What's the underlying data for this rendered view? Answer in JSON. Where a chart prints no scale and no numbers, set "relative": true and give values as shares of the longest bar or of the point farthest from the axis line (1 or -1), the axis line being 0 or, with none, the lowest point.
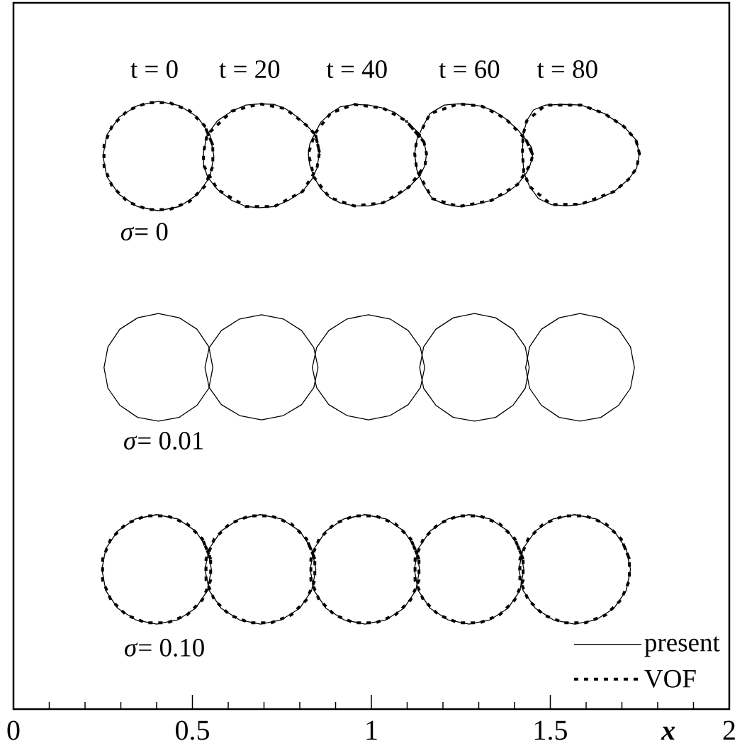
{
  "chart_data": {
    "type": "line",
    "relative": true,
    "xlabel": "x",
    "xlim": [
      0,
      2
    ],
    "xticks": [
      0,
      {
        "value": 0.1,
        "label": null
      },
      {
        "value": 0.2,
        "label": null
      },
      {
        "value": 0.3,
        "label": null
      },
      {
        "value": 0.4,
        "label": null
      },
      0.5,
      {
        "value": 0.6,
        "label": null
      },
      {
        "value": 0.7,
        "label": null
      },
      {
        "value": 0.8,
        "label": null
      },
      {
        "value": 0.9,
        "label": null
      },
      1,
      {
        "value": 1.1,
        "label": null
      },
      {
        "value": 1.2,
        "label": null
      },
      {
        "value": 1.3,
        "label": null
      },
      {
        "value": 1.4,
        "label": null
      },
      1.5,
      {
        "value": 1.6,
        "label": null
      },
      {
        "value": 1.7,
        "label": null
      },
      {
        "value": 1.8,
        "label": null
      },
      {
        "value": 1.9,
        "label": null
      },
      2
    ],
    "legend": "bottom right",
    "annotations": [
      "t = 0",
      "t = 20",
      "t = 40",
      "t = 60",
      "t = 80",
      "*σ*= 0",
      "*σ*= 0.01",
      "*σ*= 0.10"
    ],
    "series": [
      {
        "name": "present",
        "color": "#000000",
        "line_style": "solid",
        "x": [
          0.56,
          0.549,
          0.515,
          0.464,
          0.405,
          0.346,
          0.295,
          0.261,
          0.25,
          0.261,
          0.295,
          0.346,
          0.405,
          0.464,
          0.515,
          0.549,
          0.56,
          0.549
        ],
        "values": [
          0.91,
          0.945,
          0.974,
          0.993,
          1,
          0.993,
          0.974,
          0.945,
          0.91,
          0.876,
          0.847,
          0.827,
          0.82,
          0.827,
          0.847,
          0.876,
          0.91,
          0.945
        ]
      },
      {
        "color": "#000000",
        "line_style": "solid",
        "x": [
          0.855,
          0.844,
          0.82,
          0.794,
          0.76,
          0.729,
          0.689,
          0.65,
          0.61,
          0.57,
          0.541,
          0.531,
          0.531,
          0.543,
          0.57,
          0.61,
          0.65,
          0.689,
          0.729,
          0.768,
          0.808,
          0.834,
          0.848,
          0.855,
          0.844
        ],
        "values": [
          0.916,
          0.945,
          0.96,
          0.974,
          0.988,
          0.995,
          0.996,
          0.994,
          0.984,
          0.968,
          0.945,
          0.916,
          0.895,
          0.875,
          0.855,
          0.837,
          0.827,
          0.825,
          0.827,
          0.837,
          0.852,
          0.872,
          0.89,
          0.916,
          0.945
        ]
      },
      {
        "color": "#000000",
        "line_style": "solid",
        "x": [
          1.154,
          1.147,
          1.131,
          1.097,
          1.065,
          1.032,
          0.992,
          0.952,
          0.913,
          0.887,
          0.859,
          0.842,
          0.828,
          0.824,
          0.828,
          0.84,
          0.859,
          0.883,
          0.913,
          0.952,
          0.992,
          1.032,
          1.065,
          1.105,
          1.135,
          1.15,
          1.154,
          1.147
        ],
        "values": [
          0.914,
          0.933,
          0.949,
          0.968,
          0.982,
          0.989,
          0.994,
          0.995,
          0.991,
          0.981,
          0.966,
          0.947,
          0.93,
          0.914,
          0.895,
          0.875,
          0.856,
          0.842,
          0.833,
          0.828,
          0.828,
          0.833,
          0.842,
          0.859,
          0.877,
          0.895,
          0.914,
          0.933
        ]
      },
      {
        "color": "#000000",
        "line_style": "solid",
        "x": [
          1.451,
          1.448,
          1.432,
          1.408,
          1.374,
          1.343,
          1.309,
          1.275,
          1.244,
          1.204,
          1.164,
          1.145,
          1.127,
          1.121,
          1.127,
          1.145,
          1.17,
          1.204,
          1.244,
          1.289,
          1.335,
          1.374,
          1.408,
          1.434,
          1.444,
          1.451,
          1.448
        ],
        "values": [
          0.912,
          0.924,
          0.937,
          0.954,
          0.972,
          0.984,
          0.992,
          0.995,
          0.996,
          0.994,
          0.98,
          0.96,
          0.937,
          0.914,
          0.887,
          0.863,
          0.84,
          0.831,
          0.827,
          0.83,
          0.837,
          0.848,
          0.863,
          0.883,
          0.896,
          0.912,
          0.924
        ]
      },
      {
        "color": "#000000",
        "line_style": "solid",
        "x": [
          1.749,
          1.739,
          1.705,
          1.651,
          1.586,
          1.537,
          1.487,
          1.453,
          1.434,
          1.424,
          1.422,
          1.426,
          1.442,
          1.467,
          1.503,
          1.547,
          1.586,
          1.626,
          1.679,
          1.719,
          1.741,
          1.749,
          1.739
        ],
        "values": [
          0.914,
          0.937,
          0.959,
          0.98,
          0.994,
          0.995,
          0.994,
          0.986,
          0.968,
          0.945,
          0.914,
          0.883,
          0.86,
          0.84,
          0.83,
          0.828,
          0.831,
          0.837,
          0.852,
          0.872,
          0.89,
          0.914,
          0.937
        ]
      },
      {
        "color": "#000000",
        "line_style": "solid",
        "x": [
          0.557,
          0.546,
          0.513,
          0.463,
          0.405,
          0.347,
          0.297,
          0.264,
          0.253,
          0.264,
          0.297,
          0.347,
          0.405,
          0.463,
          0.513,
          0.546,
          0.557,
          0.546
        ],
        "values": [
          0.562,
          0.596,
          0.625,
          0.644,
          0.651,
          0.644,
          0.625,
          0.596,
          0.562,
          0.528,
          0.5,
          0.48,
          0.474,
          0.48,
          0.5,
          0.528,
          0.562,
          0.596
        ]
      },
      {
        "color": "#000000",
        "line_style": "solid",
        "x": [
          0.851,
          0.839,
          0.805,
          0.754,
          0.693,
          0.632,
          0.581,
          0.547,
          0.535,
          0.547,
          0.581,
          0.632,
          0.693,
          0.754,
          0.805,
          0.839,
          0.851,
          0.839
        ],
        "values": [
          0.562,
          0.595,
          0.623,
          0.642,
          0.649,
          0.642,
          0.623,
          0.595,
          0.562,
          0.529,
          0.501,
          0.483,
          0.476,
          0.483,
          0.501,
          0.529,
          0.562,
          0.595
        ]
      },
      {
        "color": "#000000",
        "line_style": "solid",
        "x": [
          1.149,
          1.137,
          1.103,
          1.052,
          0.992,
          0.932,
          0.881,
          0.847,
          0.835,
          0.847,
          0.881,
          0.932,
          0.992,
          1.052,
          1.103,
          1.137,
          1.149,
          1.137
        ],
        "values": [
          0.562,
          0.595,
          0.623,
          0.642,
          0.649,
          0.642,
          0.623,
          0.595,
          0.562,
          0.529,
          0.501,
          0.483,
          0.476,
          0.483,
          0.501,
          0.529,
          0.562,
          0.595
        ]
      },
      {
        "color": "#000000",
        "line_style": "solid",
        "x": [
          1.441,
          1.43,
          1.396,
          1.347,
          1.288,
          1.229,
          1.18,
          1.146,
          1.135,
          1.146,
          1.18,
          1.229,
          1.288,
          1.347,
          1.396,
          1.43,
          1.441,
          1.43
        ],
        "values": [
          0.562,
          0.596,
          0.625,
          0.644,
          0.651,
          0.644,
          0.625,
          0.596,
          0.562,
          0.528,
          0.5,
          0.48,
          0.474,
          0.48,
          0.5,
          0.528,
          0.562,
          0.596
        ]
      },
      {
        "color": "#000000",
        "line_style": "solid",
        "x": [
          1.735,
          1.724,
          1.691,
          1.641,
          1.583,
          1.525,
          1.475,
          1.442,
          1.431,
          1.442,
          1.475,
          1.525,
          1.583,
          1.641,
          1.691,
          1.724,
          1.735,
          1.724
        ],
        "values": [
          0.562,
          0.596,
          0.625,
          0.644,
          0.651,
          0.644,
          0.625,
          0.596,
          0.562,
          0.528,
          0.5,
          0.48,
          0.474,
          0.48,
          0.5,
          0.528,
          0.562,
          0.596
        ]
      },
      {
        "color": "#000000",
        "line_style": "solid",
        "x": [
          0.553,
          0.542,
          0.509,
          0.459,
          0.4,
          0.341,
          0.291,
          0.258,
          0.247,
          0.258,
          0.291,
          0.341,
          0.4,
          0.459,
          0.509,
          0.542,
          0.553,
          0.542
        ],
        "values": [
          0.23,
          0.264,
          0.293,
          0.313,
          0.32,
          0.313,
          0.293,
          0.264,
          0.23,
          0.195,
          0.166,
          0.147,
          0.14,
          0.147,
          0.166,
          0.195,
          0.23,
          0.264
        ]
      },
      {
        "color": "#000000",
        "line_style": "solid",
        "x": [
          0.845,
          0.833,
          0.8,
          0.749,
          0.69,
          0.631,
          0.58,
          0.547,
          0.535,
          0.547,
          0.58,
          0.631,
          0.69,
          0.749,
          0.8,
          0.833,
          0.845,
          0.833
        ],
        "values": [
          0.23,
          0.264,
          0.293,
          0.313,
          0.32,
          0.313,
          0.293,
          0.264,
          0.23,
          0.195,
          0.166,
          0.147,
          0.14,
          0.147,
          0.166,
          0.195,
          0.23,
          0.264
        ]
      },
      {
        "color": "#000000",
        "line_style": "solid",
        "x": [
          1.135,
          1.124,
          1.091,
          1.041,
          0.982,
          0.923,
          0.873,
          0.84,
          0.829,
          0.84,
          0.873,
          0.923,
          0.982,
          1.041,
          1.091,
          1.124,
          1.135,
          1.124
        ],
        "values": [
          0.23,
          0.264,
          0.293,
          0.313,
          0.32,
          0.313,
          0.293,
          0.264,
          0.23,
          0.195,
          0.166,
          0.147,
          0.14,
          0.147,
          0.166,
          0.195,
          0.23,
          0.264
        ]
      },
      {
        "color": "#000000",
        "line_style": "solid",
        "x": [
          1.426,
          1.415,
          1.382,
          1.332,
          1.273,
          1.214,
          1.164,
          1.131,
          1.12,
          1.131,
          1.164,
          1.214,
          1.273,
          1.332,
          1.382,
          1.415,
          1.426,
          1.415
        ],
        "values": [
          0.23,
          0.264,
          0.293,
          0.313,
          0.32,
          0.313,
          0.293,
          0.264,
          0.23,
          0.195,
          0.166,
          0.147,
          0.14,
          0.147,
          0.166,
          0.195,
          0.23,
          0.264
        ]
      },
      {
        "color": "#000000",
        "line_style": "solid",
        "x": [
          1.724,
          1.712,
          1.678,
          1.628,
          1.568,
          1.508,
          1.458,
          1.424,
          1.412,
          1.424,
          1.458,
          1.508,
          1.568,
          1.628,
          1.678,
          1.712,
          1.724,
          1.712
        ],
        "values": [
          0.23,
          0.264,
          0.293,
          0.313,
          0.32,
          0.313,
          0.293,
          0.264,
          0.23,
          0.195,
          0.166,
          0.147,
          0.14,
          0.147,
          0.166,
          0.195,
          0.23,
          0.264
        ]
      },
      {
        "name": "VOF",
        "color": "#000000",
        "line_style": "dashed",
        "x": [
          0.557,
          0.534,
          0.491,
          0.435,
          0.375,
          0.319,
          0.276,
          0.253,
          0.253,
          0.276,
          0.319,
          0.375,
          0.435,
          0.491,
          0.534,
          0.557,
          0.557,
          0.534
        ],
        "values": [
          0.928,
          0.96,
          0.985,
          0.998,
          0.998,
          0.985,
          0.96,
          0.928,
          0.893,
          0.86,
          0.835,
          0.822,
          0.822,
          0.835,
          0.86,
          0.893,
          0.928,
          0.96
        ]
      },
      {
        "color": "#000000",
        "line_style": "dashed",
        "x": [
          0.855,
          0.844,
          0.82,
          0.76,
          0.689,
          0.61,
          0.541,
          0.531,
          0.531,
          0.57,
          0.65,
          0.729,
          0.808,
          0.848,
          0.855,
          0.844
        ],
        "values": [
          0.916,
          0.945,
          0.96,
          0.988,
          0.996,
          0.984,
          0.945,
          0.916,
          0.895,
          0.855,
          0.827,
          0.827,
          0.852,
          0.89,
          0.916,
          0.945
        ]
      },
      {
        "color": "#000000",
        "line_style": "dashed",
        "x": [
          1.147,
          1.097,
          1.032,
          0.952,
          0.887,
          0.842,
          0.824,
          0.84,
          0.883,
          0.952,
          1.032,
          1.105,
          1.15,
          1.154,
          1.147,
          1.097
        ],
        "values": [
          0.933,
          0.968,
          0.989,
          0.995,
          0.981,
          0.947,
          0.914,
          0.875,
          0.842,
          0.828,
          0.833,
          0.859,
          0.895,
          0.914,
          0.933,
          0.968
        ]
      },
      {
        "color": "#000000",
        "line_style": "dashed",
        "x": [
          1.451,
          1.432,
          1.374,
          1.309,
          1.244,
          1.164,
          1.127,
          1.121,
          1.127,
          1.17,
          1.244,
          1.335,
          1.408,
          1.444,
          1.451,
          1.432
        ],
        "values": [
          0.912,
          0.937,
          0.972,
          0.992,
          0.996,
          0.98,
          0.937,
          0.914,
          0.887,
          0.84,
          0.827,
          0.837,
          0.863,
          0.896,
          0.912,
          0.937
        ]
      },
      {
        "color": "#000000",
        "line_style": "dashed",
        "x": [
          1.749,
          1.739,
          1.705,
          1.651,
          1.586,
          1.487,
          1.434,
          1.424,
          1.422,
          1.426,
          1.442,
          1.503,
          1.586,
          1.679,
          1.719,
          1.741,
          1.749,
          1.739
        ],
        "values": [
          0.914,
          0.937,
          0.959,
          0.98,
          0.994,
          0.994,
          0.968,
          0.945,
          0.914,
          0.883,
          0.86,
          0.83,
          0.831,
          0.852,
          0.872,
          0.89,
          0.914,
          0.937
        ]
      },
      {
        "color": "#000000",
        "line_style": "dashed",
        "x": [
          0.551,
          0.528,
          0.485,
          0.43,
          0.37,
          0.315,
          0.272,
          0.249,
          0.249,
          0.272,
          0.315,
          0.37,
          0.43,
          0.485,
          0.528,
          0.551,
          0.551,
          0.528
        ],
        "values": [
          0.247,
          0.28,
          0.305,
          0.318,
          0.318,
          0.305,
          0.28,
          0.247,
          0.212,
          0.18,
          0.155,
          0.142,
          0.142,
          0.155,
          0.18,
          0.212,
          0.247,
          0.28
        ]
      },
      {
        "color": "#000000",
        "line_style": "dashed",
        "x": [
          0.842,
          0.819,
          0.776,
          0.72,
          0.66,
          0.604,
          0.561,
          0.538,
          0.538,
          0.561,
          0.604,
          0.66,
          0.72,
          0.776,
          0.819,
          0.842,
          0.842,
          0.819
        ],
        "values": [
          0.247,
          0.28,
          0.305,
          0.318,
          0.318,
          0.305,
          0.28,
          0.247,
          0.212,
          0.18,
          0.155,
          0.142,
          0.142,
          0.155,
          0.18,
          0.212,
          0.247,
          0.28
        ]
      },
      {
        "color": "#000000",
        "line_style": "dashed",
        "x": [
          1.133,
          1.11,
          1.067,
          1.012,
          0.952,
          0.897,
          0.854,
          0.831,
          0.831,
          0.854,
          0.897,
          0.952,
          1.012,
          1.067,
          1.11,
          1.133,
          1.133,
          1.11
        ],
        "values": [
          0.247,
          0.28,
          0.305,
          0.318,
          0.318,
          0.305,
          0.28,
          0.247,
          0.212,
          0.18,
          0.155,
          0.142,
          0.142,
          0.155,
          0.18,
          0.212,
          0.247,
          0.28
        ]
      },
      {
        "color": "#000000",
        "line_style": "dashed",
        "x": [
          1.424,
          1.401,
          1.358,
          1.303,
          1.243,
          1.188,
          1.145,
          1.122,
          1.122,
          1.145,
          1.188,
          1.243,
          1.303,
          1.358,
          1.401,
          1.424,
          1.424,
          1.401
        ],
        "values": [
          0.247,
          0.28,
          0.305,
          0.318,
          0.318,
          0.305,
          0.28,
          0.247,
          0.212,
          0.18,
          0.155,
          0.142,
          0.142,
          0.155,
          0.18,
          0.212,
          0.247,
          0.28
        ]
      },
      {
        "color": "#000000",
        "line_style": "dashed",
        "x": [
          1.721,
          1.698,
          1.655,
          1.598,
          1.538,
          1.481,
          1.438,
          1.415,
          1.415,
          1.438,
          1.481,
          1.538,
          1.598,
          1.655,
          1.698,
          1.721,
          1.721,
          1.698
        ],
        "values": [
          0.247,
          0.28,
          0.305,
          0.318,
          0.318,
          0.305,
          0.28,
          0.247,
          0.212,
          0.18,
          0.155,
          0.142,
          0.142,
          0.155,
          0.18,
          0.212,
          0.247,
          0.28
        ]
      }
    ]
  }
}
